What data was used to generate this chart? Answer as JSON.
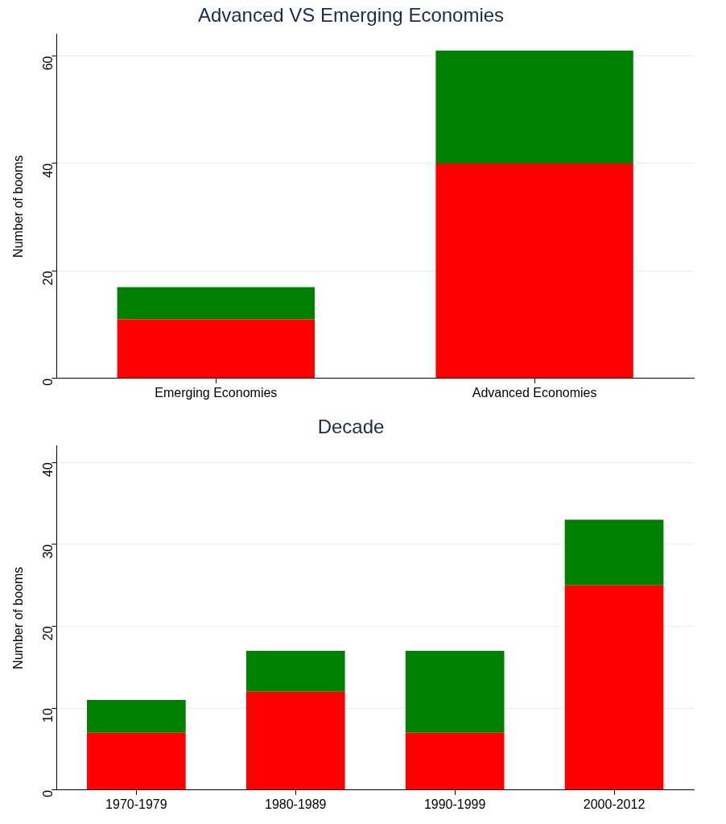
{
  "chart_data": [
    {
      "type": "bar",
      "title": "Advanced VS Emerging Economies",
      "ylabel": "Number of booms",
      "categories": [
        "Emerging Economies",
        "Advanced Economies"
      ],
      "stacked": true,
      "ylim": [
        0,
        64
      ],
      "yticks": [
        0,
        20,
        40,
        60
      ],
      "grid": "y",
      "legend": false,
      "series": [
        {
          "color": "#ff0000",
          "values": [
            11,
            40
          ]
        },
        {
          "color": "#008000",
          "values": [
            6,
            21
          ]
        }
      ]
    },
    {
      "type": "bar",
      "title": "Decade",
      "ylabel": "Number of booms",
      "categories": [
        "1970-1979",
        "1980-1989",
        "1990-1999",
        "2000-2012"
      ],
      "stacked": true,
      "ylim": [
        0,
        42
      ],
      "yticks": [
        0,
        10,
        20,
        30,
        40
      ],
      "grid": "y",
      "legend": false,
      "series": [
        {
          "color": "#ff0000",
          "values": [
            7,
            12,
            7,
            25
          ]
        },
        {
          "color": "#008000",
          "values": [
            4,
            5,
            10,
            8
          ]
        }
      ]
    }
  ]
}
